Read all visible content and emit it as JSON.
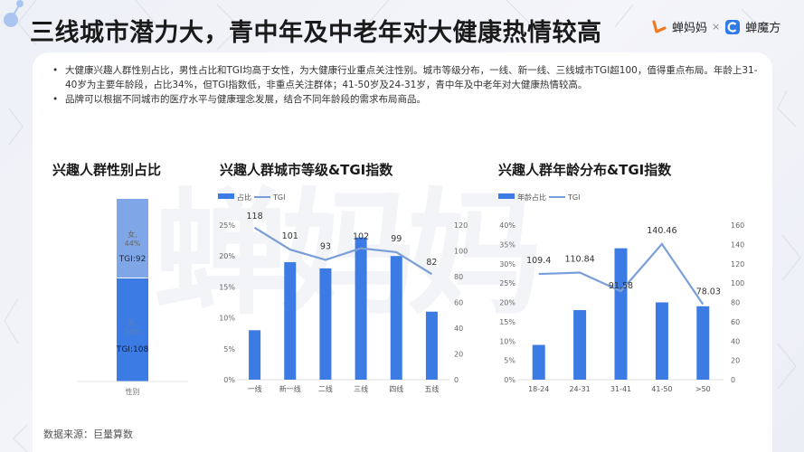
{
  "header": {
    "title": "三线城市潜力大，青中年及中老年对大健康热情较高",
    "logo_left": "蝉妈妈",
    "logo_sep": "×",
    "logo_right": "蝉魔方"
  },
  "summary": {
    "bullets": [
      "大健康兴趣人群性别占比，男性占比和TGI均高于女性，为大健康行业重点关注性别。城市等级分布，一线、新一线、三线城市TGI超100，值得重点布局。年龄上31-40岁为主要年龄段，占比34%，但TGI指数低，非重点关注群体；41-50岁及24-31岁，青中年及中老年对大健康热情较高。",
      "品牌可以根据不同城市的医疗水平与健康理念发展，结合不同年龄段的需求布局商品。"
    ]
  },
  "watermark": "蝉妈妈",
  "footer": {
    "source": "数据来源：巨量算数"
  },
  "colors": {
    "bar": "#3b7be3",
    "bar_light": "#7fa6e6",
    "line": "#7a9fd8",
    "text": "#333333"
  },
  "chart_data": [
    {
      "type": "bar",
      "stacked": true,
      "title": "兴趣人群性别占比",
      "categories": [
        "性别"
      ],
      "series": [
        {
          "name": "男",
          "values": [
            56
          ],
          "label": "男,\n56%",
          "tgi": "TGI:108",
          "color": "#3b7be3"
        },
        {
          "name": "女",
          "values": [
            44
          ],
          "label": "女,\n44%",
          "tgi": "TGI:92",
          "color": "#7fa6e6"
        }
      ],
      "xlabel": "性别",
      "ylim": [
        0,
        100
      ]
    },
    {
      "type": "bar+line",
      "title": "兴趣人群城市等级&TGI指数",
      "legend": [
        "占比",
        "TGI"
      ],
      "legend_position": "top-left",
      "categories": [
        "一线",
        "新一线",
        "二线",
        "三线",
        "四线",
        "五线"
      ],
      "series": [
        {
          "name": "占比",
          "type": "bar",
          "axis": "left",
          "values": [
            8,
            19,
            18,
            23,
            20,
            11
          ]
        },
        {
          "name": "TGI",
          "type": "line",
          "axis": "right",
          "values": [
            118,
            101,
            93,
            102,
            99,
            82
          ]
        }
      ],
      "y_left": {
        "ticks": [
          "0%",
          "5%",
          "10%",
          "15%",
          "20%",
          "25%"
        ],
        "ylim": [
          0,
          25
        ]
      },
      "y_right": {
        "ticks": [
          "0",
          "20",
          "40",
          "60",
          "80",
          "100",
          "120"
        ],
        "ylim": [
          0,
          120
        ]
      },
      "grid": false
    },
    {
      "type": "bar+line",
      "title": "兴趣人群年龄分布&TGI指数",
      "legend": [
        "年龄占比",
        "TGI"
      ],
      "legend_position": "top-left",
      "categories": [
        "18-24",
        "24-31",
        "31-41",
        "41-50",
        ">50"
      ],
      "series": [
        {
          "name": "年龄占比",
          "type": "bar",
          "axis": "left",
          "values": [
            9,
            18,
            34,
            20,
            19
          ]
        },
        {
          "name": "TGI",
          "type": "line",
          "axis": "right",
          "values": [
            109.4,
            110.84,
            91.58,
            140.46,
            78.03
          ]
        }
      ],
      "y_left": {
        "ticks": [
          "0%",
          "5%",
          "10%",
          "15%",
          "20%",
          "25%",
          "30%",
          "35%",
          "40%"
        ],
        "ylim": [
          0,
          40
        ]
      },
      "y_right": {
        "ticks": [
          "0",
          "20",
          "40",
          "60",
          "80",
          "100",
          "120",
          "140",
          "160"
        ],
        "ylim": [
          0,
          160
        ]
      },
      "grid": false
    }
  ]
}
